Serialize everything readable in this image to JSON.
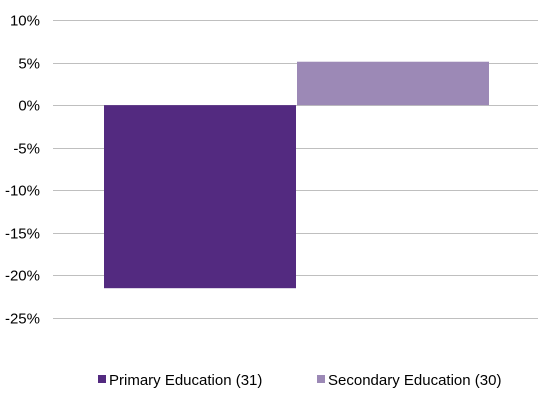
{
  "chart_data": {
    "type": "bar",
    "categories": [
      ""
    ],
    "series": [
      {
        "name": "Primary Education (31)",
        "values": [
          -21.5
        ],
        "color": "#532A80"
      },
      {
        "name": "Secondary Education (30)",
        "values": [
          5.1
        ],
        "color": "#9C89B6"
      }
    ],
    "ylim": [
      -25,
      10
    ],
    "yticks": [
      -25,
      -20,
      -15,
      -10,
      -5,
      0,
      5,
      10
    ],
    "ytick_labels": [
      "-25%",
      "-20%",
      "-15%",
      "-10%",
      "-5%",
      "0%",
      "5%",
      "10%"
    ],
    "grid": true,
    "legend": "bottom",
    "colors": {
      "grid": "#BFBFBF",
      "text": "#000000"
    }
  }
}
